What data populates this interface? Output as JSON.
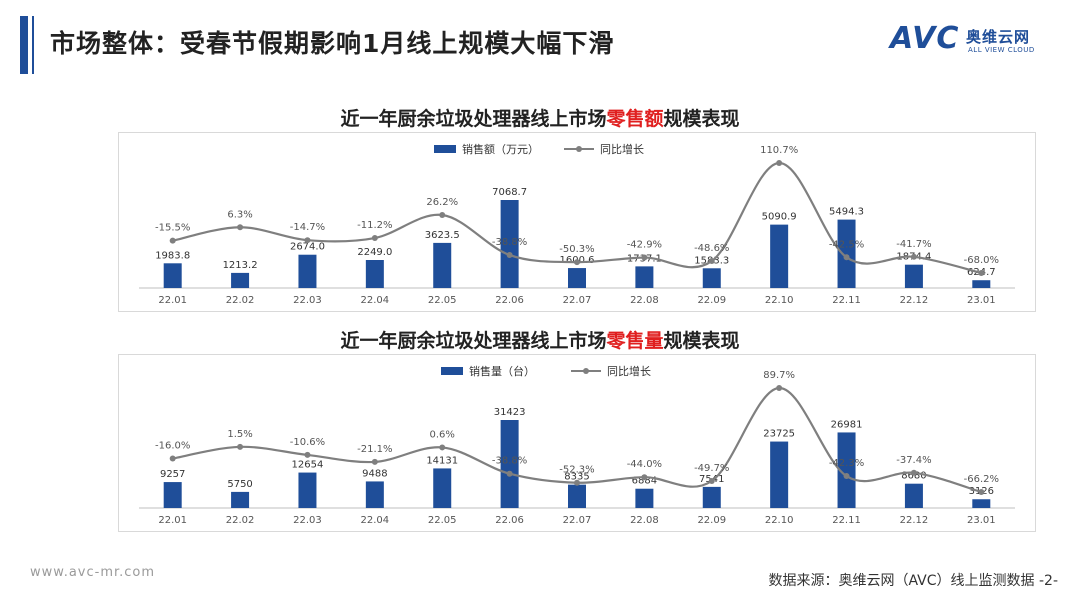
{
  "header": {
    "title": "市场整体：受春节假期影响1月线上规模大幅下滑",
    "logo_text": "AVC",
    "logo_cn": "奥维云网",
    "logo_en": "ALL VIEW CLOUD"
  },
  "footer": {
    "url": "www.avc-mr.com",
    "source": "数据来源：奥维云网（AVC）线上监测数据 -2-"
  },
  "colors": {
    "bar": "#1F4E99",
    "line": "#7F7F7F",
    "highlight": "#E01F1F",
    "accent": "#1F4E99"
  },
  "chart_data": [
    {
      "type": "bar",
      "title_pre": "近一年厨余垃圾处理器线上市场",
      "title_hl": "零售额",
      "title_post": "规模表现",
      "categories": [
        "22.01",
        "22.02",
        "22.03",
        "22.04",
        "22.05",
        "22.06",
        "22.07",
        "22.08",
        "22.09",
        "22.10",
        "22.11",
        "22.12",
        "23.01"
      ],
      "series": [
        {
          "name": "销售额（万元）",
          "type": "bar",
          "values": [
            1983.8,
            1213.2,
            2674.0,
            2249.0,
            3623.5,
            7068.7,
            1600.6,
            1737.1,
            1583.3,
            5090.9,
            5494.3,
            1874.4,
            624.7
          ],
          "labels": [
            "1983.8",
            "1213.2",
            "2674.0",
            "2249.0",
            "3623.5",
            "7068.7",
            "1600.6",
            "1737.1",
            "1583.3",
            "5090.9",
            "5494.3",
            "1874.4",
            "624.7"
          ]
        },
        {
          "name": "同比增长",
          "type": "line",
          "values": [
            -15.5,
            6.3,
            -14.7,
            -11.2,
            26.2,
            -38.8,
            -50.3,
            -42.9,
            -48.6,
            110.7,
            -42.5,
            -41.7,
            -68.0
          ],
          "labels": [
            "-15.5%",
            "6.3%",
            "-14.7%",
            "-11.2%",
            "26.2%",
            "-38.8%",
            "-50.3%",
            "-42.9%",
            "-48.6%",
            "110.7%",
            "-42.5%",
            "-41.7%",
            "-68.0%"
          ]
        }
      ],
      "legend": "top-center",
      "grid": false
    },
    {
      "type": "bar",
      "title_pre": "近一年厨余垃圾处理器线上市场",
      "title_hl": "零售量",
      "title_post": "规模表现",
      "categories": [
        "22.01",
        "22.02",
        "22.03",
        "22.04",
        "22.05",
        "22.06",
        "22.07",
        "22.08",
        "22.09",
        "22.10",
        "22.11",
        "22.12",
        "23.01"
      ],
      "series": [
        {
          "name": "销售量（台）",
          "type": "bar",
          "values": [
            9257,
            5750,
            12654,
            9488,
            14131,
            31423,
            8335,
            6884,
            7541,
            23725,
            26981,
            8680,
            3126
          ],
          "labels": [
            "9257",
            "5750",
            "12654",
            "9488",
            "14131",
            "31423",
            "8335",
            "6884",
            "7541",
            "23725",
            "26981",
            "8680",
            "3126"
          ]
        },
        {
          "name": "同比增长",
          "type": "line",
          "values": [
            -16.0,
            1.5,
            -10.6,
            -21.1,
            0.6,
            -38.8,
            -52.3,
            -44.0,
            -49.7,
            89.7,
            -42.3,
            -37.4,
            -66.2
          ],
          "labels": [
            "-16.0%",
            "1.5%",
            "-10.6%",
            "-21.1%",
            "0.6%",
            "-38.8%",
            "-52.3%",
            "-44.0%",
            "-49.7%",
            "89.7%",
            "-42.3%",
            "-37.4%",
            "-66.2%"
          ]
        }
      ],
      "legend": "top-center",
      "grid": false
    }
  ]
}
